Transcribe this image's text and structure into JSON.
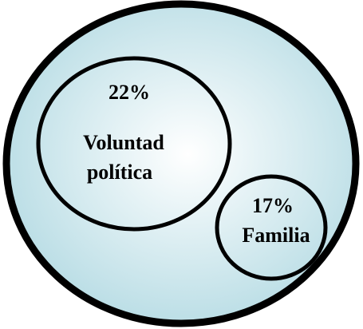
{
  "diagram": {
    "outer_circle": {
      "fill_center": "#ffffff",
      "fill_edge": "#b9dde5",
      "stroke": "#000000"
    },
    "circles": [
      {
        "percent": "22%",
        "label_line1": "Voluntad",
        "label_line2": "política"
      },
      {
        "percent": "17%",
        "label_line1": "Familia"
      }
    ]
  }
}
